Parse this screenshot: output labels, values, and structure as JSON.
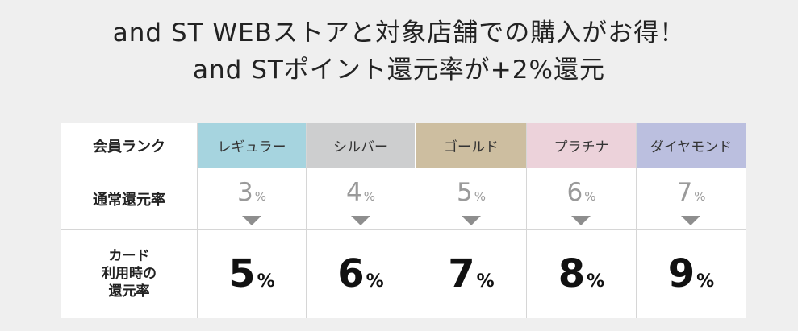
{
  "headline": {
    "line1": "and ST WEBストアと対象店舗での購入がお得！",
    "line2": "and STポイント還元率が+2%還元"
  },
  "table": {
    "header_label": "会員ランク",
    "normal_label": "通常還元率",
    "card_label_lines": [
      "カード",
      "利用時の",
      "還元率"
    ],
    "ranks": [
      {
        "name": "レギュラー",
        "color": "#a6d4df",
        "normal": "3",
        "card": "5",
        "pct": "%"
      },
      {
        "name": "シルバー",
        "color": "#cdcecf",
        "normal": "4",
        "card": "6",
        "pct": "%"
      },
      {
        "name": "ゴールド",
        "color": "#cdbea0",
        "normal": "5",
        "card": "7",
        "pct": "%"
      },
      {
        "name": "プラチナ",
        "color": "#ecd2da",
        "normal": "6",
        "card": "8",
        "pct": "%"
      },
      {
        "name": "ダイヤモンド",
        "color": "#bbbfdf",
        "normal": "7",
        "card": "9",
        "pct": "%"
      }
    ]
  }
}
